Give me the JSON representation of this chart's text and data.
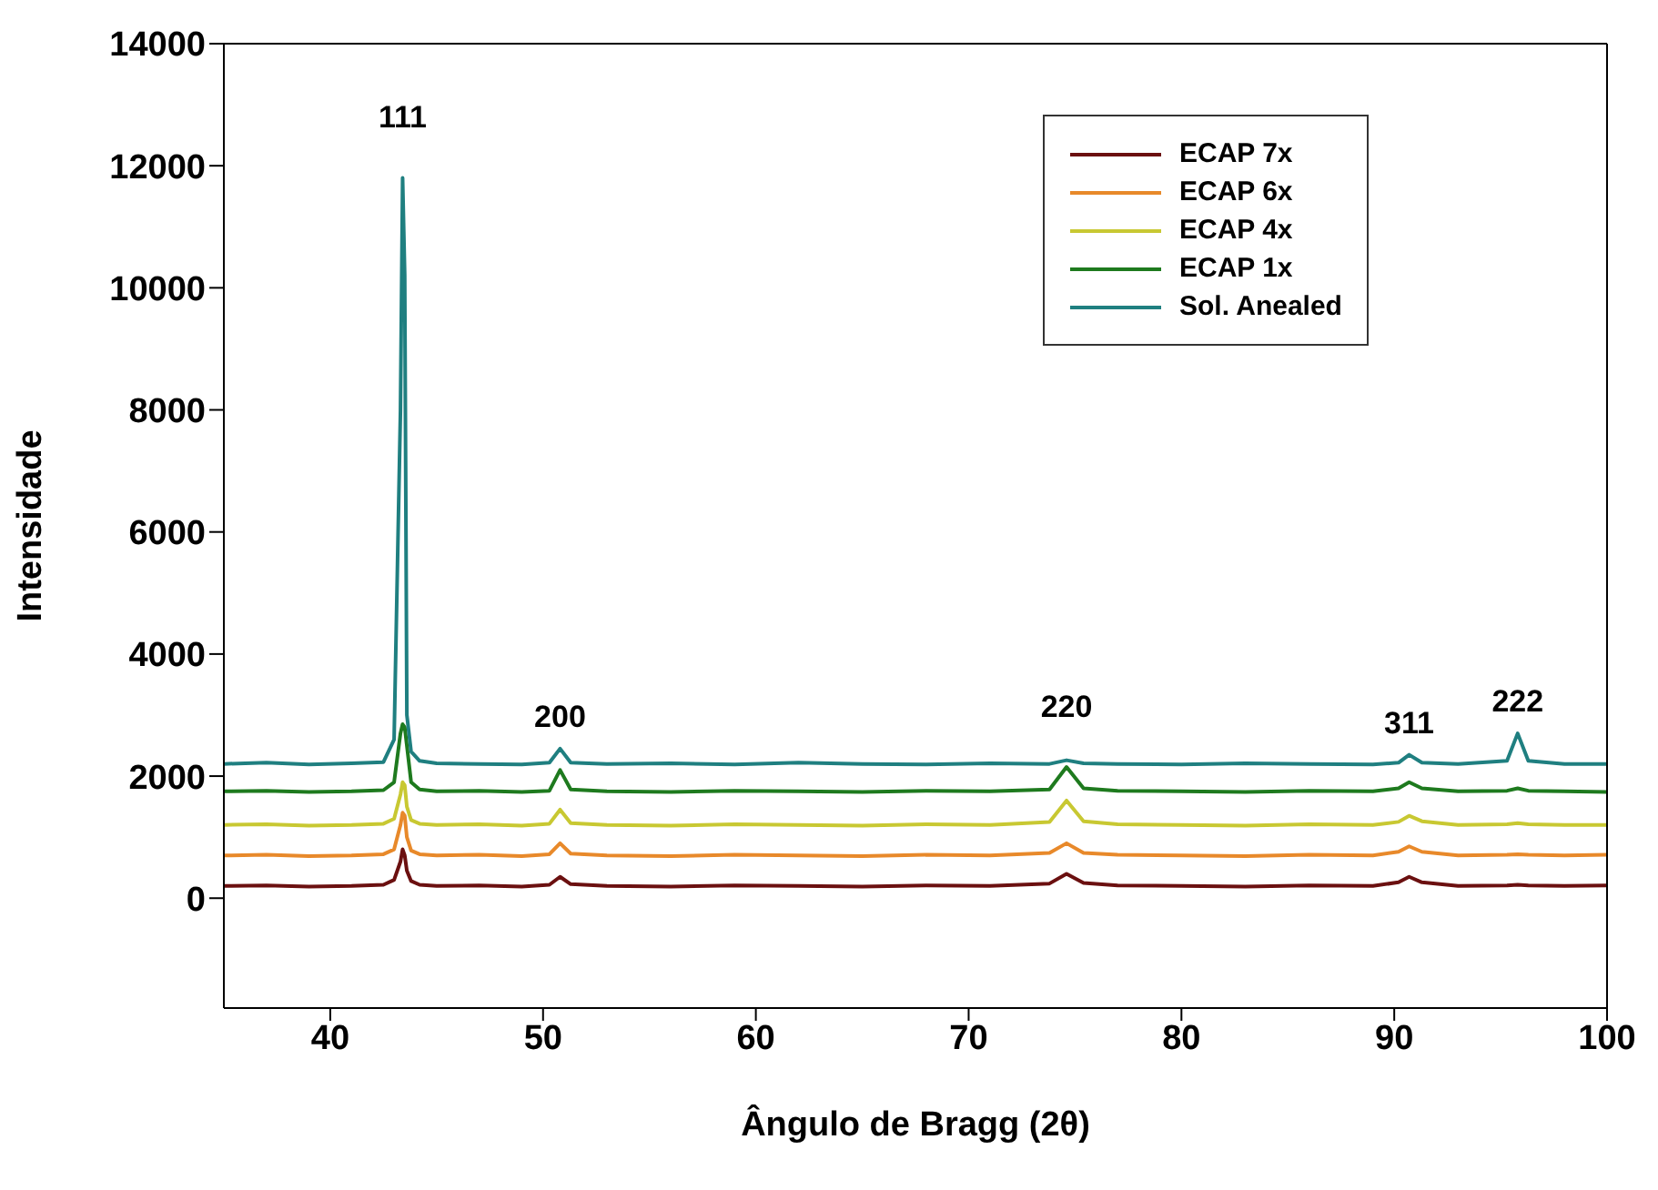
{
  "chart_data": {
    "type": "line",
    "xlabel": "Ângulo de Bragg (2θ)",
    "ylabel": "Intensidade",
    "x": [
      35,
      37,
      39,
      41,
      42.5,
      43.0,
      43.3,
      43.4,
      43.5,
      43.6,
      43.8,
      44.2,
      45,
      47,
      49,
      50.3,
      50.8,
      51.3,
      53,
      56,
      59,
      62,
      65,
      68,
      71,
      73.8,
      74.6,
      75.4,
      77,
      80,
      83,
      86,
      89,
      90.2,
      90.7,
      91.3,
      93,
      95.3,
      95.8,
      96.3,
      98,
      100
    ],
    "series": [
      {
        "name": "ECAP 7x",
        "color": "#6b1010",
        "values": [
          200,
          210,
          190,
          200,
          220,
          300,
          600,
          800,
          700,
          450,
          280,
          220,
          200,
          210,
          190,
          220,
          350,
          230,
          200,
          190,
          210,
          200,
          190,
          210,
          200,
          240,
          400,
          250,
          210,
          200,
          190,
          210,
          200,
          260,
          350,
          260,
          200,
          210,
          220,
          210,
          200,
          210
        ]
      },
      {
        "name": "ECAP 6x",
        "color": "#e8892a",
        "values": [
          700,
          710,
          690,
          700,
          720,
          800,
          1200,
          1400,
          1350,
          1000,
          780,
          720,
          700,
          710,
          690,
          720,
          900,
          730,
          700,
          690,
          710,
          700,
          690,
          710,
          700,
          740,
          900,
          740,
          710,
          700,
          690,
          710,
          700,
          760,
          850,
          760,
          700,
          710,
          720,
          710,
          700,
          710
        ]
      },
      {
        "name": "ECAP 4x",
        "color": "#c8c832",
        "values": [
          1200,
          1210,
          1190,
          1200,
          1220,
          1300,
          1700,
          1900,
          1850,
          1500,
          1280,
          1220,
          1200,
          1210,
          1190,
          1220,
          1450,
          1230,
          1200,
          1190,
          1210,
          1200,
          1190,
          1210,
          1200,
          1250,
          1600,
          1260,
          1210,
          1200,
          1190,
          1210,
          1200,
          1250,
          1350,
          1260,
          1200,
          1210,
          1230,
          1210,
          1200,
          1200
        ]
      },
      {
        "name": "ECAP 1x",
        "color": "#1e7a1e",
        "values": [
          1750,
          1760,
          1740,
          1750,
          1770,
          1900,
          2700,
          2850,
          2800,
          2500,
          1900,
          1780,
          1750,
          1760,
          1740,
          1760,
          2100,
          1780,
          1750,
          1740,
          1760,
          1750,
          1740,
          1760,
          1750,
          1780,
          2150,
          1800,
          1760,
          1750,
          1740,
          1760,
          1750,
          1800,
          1900,
          1800,
          1750,
          1760,
          1800,
          1760,
          1750,
          1740
        ]
      },
      {
        "name": "Sol. Anealed",
        "color": "#1f7f80",
        "values": [
          2200,
          2220,
          2190,
          2210,
          2230,
          2600,
          8000,
          11800,
          10200,
          3000,
          2400,
          2250,
          2210,
          2200,
          2190,
          2220,
          2450,
          2220,
          2200,
          2210,
          2190,
          2220,
          2200,
          2190,
          2210,
          2200,
          2260,
          2210,
          2200,
          2190,
          2210,
          2200,
          2190,
          2220,
          2350,
          2220,
          2200,
          2250,
          2700,
          2250,
          2200,
          2200
        ]
      }
    ],
    "xlim": [
      35,
      100
    ],
    "xticks": [
      40,
      50,
      60,
      70,
      80,
      90,
      100
    ],
    "ylim": [
      -1800,
      14000
    ],
    "yticks": [
      0,
      2000,
      4000,
      6000,
      8000,
      10000,
      12000,
      14000
    ],
    "annotations": [
      {
        "text": "111",
        "x": 43.4,
        "y": 11800
      },
      {
        "text": "200",
        "x": 50.8,
        "y": 2450
      },
      {
        "text": "220",
        "x": 74.6,
        "y": 2260
      },
      {
        "text": "311",
        "x": 90.7,
        "y": 2350
      },
      {
        "text": "222",
        "x": 95.8,
        "y": 2700
      }
    ],
    "legend": "top right",
    "grid": false,
    "marker": "none",
    "line_style": "solid"
  }
}
